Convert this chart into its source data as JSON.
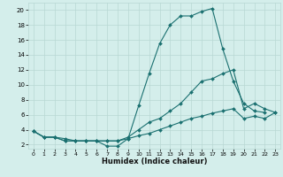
{
  "xlabel": "Humidex (Indice chaleur)",
  "background_color": "#d4eeeb",
  "grid_color": "#b8d8d4",
  "line_color": "#1a7070",
  "xlim": [
    -0.5,
    23.5
  ],
  "ylim": [
    1.5,
    21
  ],
  "xticks": [
    0,
    1,
    2,
    3,
    4,
    5,
    6,
    7,
    8,
    9,
    10,
    11,
    12,
    13,
    14,
    15,
    16,
    17,
    18,
    19,
    20,
    21,
    22,
    23
  ],
  "yticks": [
    2,
    4,
    6,
    8,
    10,
    12,
    14,
    16,
    18,
    20
  ],
  "line1_x": [
    0,
    1,
    2,
    3,
    4,
    5,
    6,
    7,
    8,
    9,
    10,
    11,
    12,
    13,
    14,
    15,
    16,
    17,
    18,
    19,
    20,
    21,
    22
  ],
  "line1_y": [
    3.8,
    3.0,
    3.0,
    2.5,
    2.5,
    2.5,
    2.5,
    1.8,
    1.8,
    2.8,
    7.2,
    11.5,
    15.5,
    18.0,
    19.2,
    19.2,
    19.8,
    20.2,
    14.8,
    10.5,
    7.5,
    6.5,
    6.3
  ],
  "line2_x": [
    0,
    1,
    2,
    3,
    4,
    5,
    6,
    7,
    8,
    9,
    10,
    11,
    12,
    13,
    14,
    15,
    16,
    17,
    18,
    19,
    20,
    21,
    22,
    23
  ],
  "line2_y": [
    3.8,
    3.0,
    3.0,
    2.8,
    2.5,
    2.5,
    2.5,
    2.5,
    2.5,
    3.0,
    4.0,
    5.0,
    5.5,
    6.5,
    7.5,
    9.0,
    10.5,
    10.8,
    11.5,
    12.0,
    6.8,
    7.5,
    6.8,
    6.3
  ],
  "line3_x": [
    0,
    1,
    2,
    3,
    4,
    5,
    6,
    7,
    8,
    9,
    10,
    11,
    12,
    13,
    14,
    15,
    16,
    17,
    18,
    19,
    20,
    21,
    22,
    23
  ],
  "line3_y": [
    3.8,
    3.0,
    3.0,
    2.5,
    2.5,
    2.5,
    2.5,
    2.5,
    2.5,
    2.8,
    3.2,
    3.5,
    4.0,
    4.5,
    5.0,
    5.5,
    5.8,
    6.2,
    6.5,
    6.8,
    5.5,
    5.8,
    5.5,
    6.3
  ]
}
